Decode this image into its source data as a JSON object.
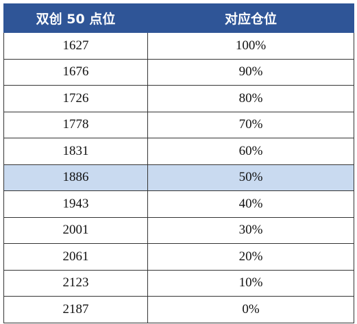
{
  "table": {
    "header": [
      "双创 50 点位",
      "对应仓位"
    ],
    "rows": [
      [
        "1627",
        "100%"
      ],
      [
        "1676",
        "90%"
      ],
      [
        "1726",
        "80%"
      ],
      [
        "1778",
        "70%"
      ],
      [
        "1831",
        "60%"
      ],
      [
        "1886",
        "50%"
      ],
      [
        "1943",
        "40%"
      ],
      [
        "2001",
        "30%"
      ],
      [
        "2061",
        "20%"
      ],
      [
        "2123",
        "10%"
      ],
      [
        "2187",
        "0%"
      ]
    ]
  }
}
